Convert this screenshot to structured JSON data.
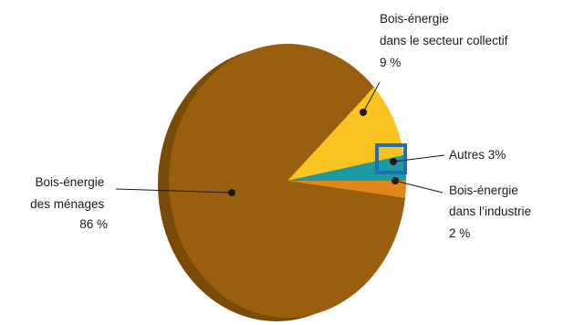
{
  "chart_data": {
    "type": "pie",
    "title": "",
    "slices": [
      {
        "key": "menages",
        "label_lines": [
          "Bois-énergie",
          "des ménages",
          "86 %"
        ],
        "value": 86,
        "color": "#9a5e0f"
      },
      {
        "key": "collectif",
        "label_lines": [
          "Bois-énergie",
          "dans le secteur collectif",
          "9 %"
        ],
        "value": 9,
        "color": "#fbc322"
      },
      {
        "key": "autres",
        "label_lines": [
          "Autres 3%"
        ],
        "value": 3,
        "color": "#1b9aa0"
      },
      {
        "key": "industrie",
        "label_lines": [
          "Bois-énergie",
          "dans l’industrie",
          "2 %"
        ],
        "value": 2,
        "color": "#e2861c"
      }
    ],
    "highlight": {
      "slice": "autres",
      "color": "#1f6fb5"
    },
    "side_color": "#7a4b08"
  }
}
